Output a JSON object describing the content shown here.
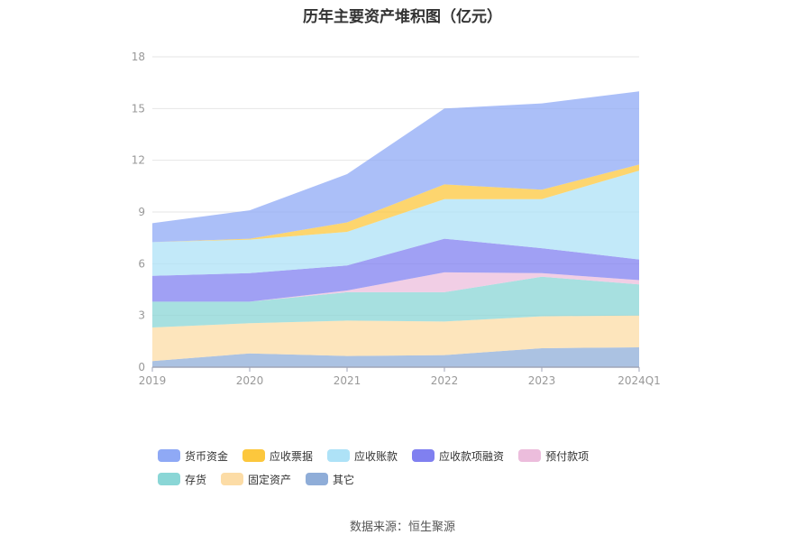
{
  "chart_data": {
    "type": "area",
    "stacked": true,
    "title": "历年主要资产堆积图（亿元）",
    "categories": [
      "2019",
      "2020",
      "2021",
      "2022",
      "2023",
      "2024Q1"
    ],
    "ylim": [
      0,
      18
    ],
    "yticks": [
      0,
      3,
      6,
      9,
      12,
      15,
      18
    ],
    "grid": true,
    "legend_position": "bottom",
    "series": [
      {
        "name": "其它",
        "color": "#8fadd8",
        "values": [
          0.35,
          0.8,
          0.65,
          0.7,
          1.1,
          1.15
        ]
      },
      {
        "name": "固定资产",
        "color": "#fcdca6",
        "values": [
          1.95,
          1.75,
          2.05,
          1.95,
          1.85,
          1.85
        ]
      },
      {
        "name": "存货",
        "color": "#8ad6d6",
        "values": [
          1.5,
          1.25,
          1.65,
          1.7,
          2.3,
          1.8
        ]
      },
      {
        "name": "预付款项",
        "color": "#ecbddc",
        "values": [
          0.0,
          0.0,
          0.1,
          1.15,
          0.2,
          0.25
        ]
      },
      {
        "name": "应收款项融资",
        "color": "#8080f0",
        "values": [
          1.5,
          1.65,
          1.45,
          1.95,
          1.45,
          1.2
        ]
      },
      {
        "name": "应收账款",
        "color": "#aee2f7",
        "values": [
          1.95,
          1.95,
          1.95,
          2.3,
          2.85,
          5.15
        ]
      },
      {
        "name": "应收票据",
        "color": "#fcc73d",
        "values": [
          0.0,
          0.05,
          0.55,
          0.85,
          0.55,
          0.35
        ]
      },
      {
        "name": "货币资金",
        "color": "#8fa9f5",
        "values": [
          1.1,
          1.65,
          2.8,
          4.4,
          5.0,
          4.25
        ]
      }
    ]
  },
  "legend_order": [
    "货币资金",
    "应收票据",
    "应收账款",
    "应收款项融资",
    "预付款项",
    "存货",
    "固定资产",
    "其它"
  ],
  "source": "数据来源：恒生聚源"
}
